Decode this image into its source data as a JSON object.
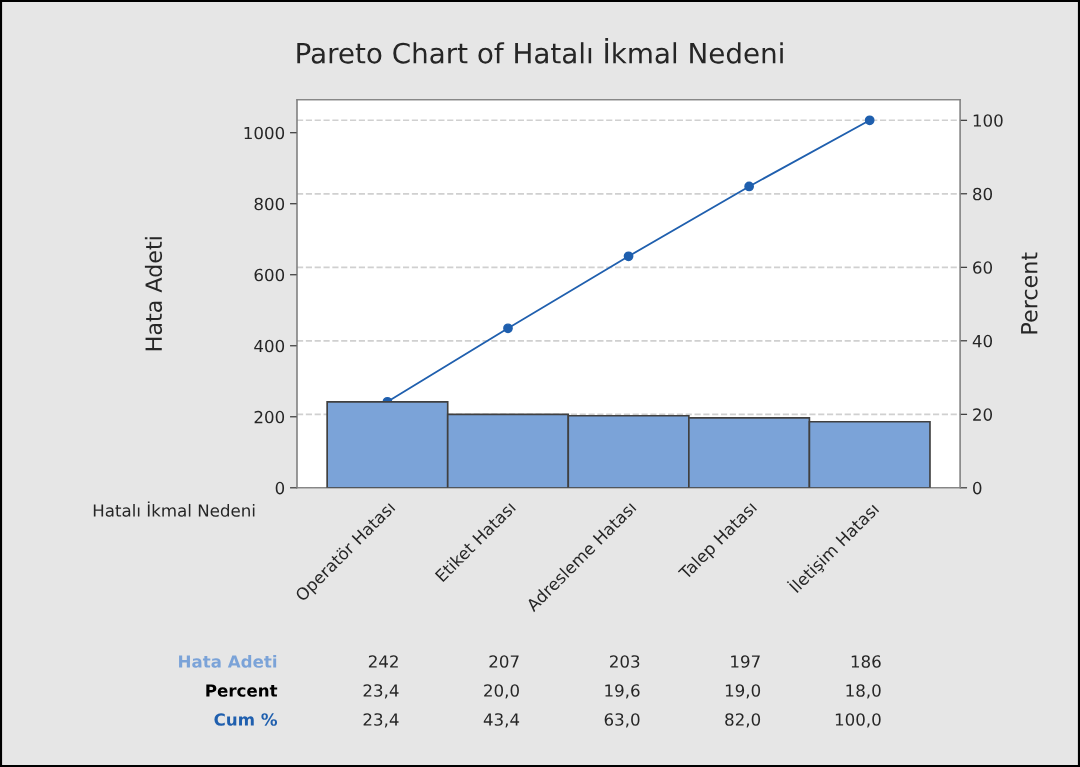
{
  "chart_data": {
    "type": "bar",
    "title": "Pareto Chart of Hatalı İkmal Nedeni",
    "xlabel": "Hatalı İkmal Nedeni",
    "ylabel": "Hata Adeti",
    "y2label": "Percent",
    "categories": [
      "Operatör Hatası",
      "Etiket Hatası",
      "Adresleme Hatası",
      "Talep Hatası",
      "İletişim Hatası"
    ],
    "series": [
      {
        "name": "Hata Adeti",
        "color": "#7ba3d8",
        "values": [
          242,
          207,
          203,
          197,
          186
        ]
      },
      {
        "name": "Cum %",
        "type": "line",
        "axis": "y2",
        "color": "#1f5fae",
        "marker": "circle",
        "line_style": "solid",
        "values": [
          23.4,
          43.4,
          63.0,
          82.0,
          100.0
        ],
        "value_labels": [
          "23,4",
          "43,4",
          "63,0",
          "82,0",
          "100,0"
        ]
      }
    ],
    "annotations": [
      "23,4",
      "20,0",
      "19,6",
      "19,0",
      "18,0"
    ],
    "data_labels": true,
    "ylim": [
      0,
      1093
    ],
    "yticks": [
      0,
      200,
      400,
      600,
      800,
      1000
    ],
    "y2lim": [
      0,
      105.6
    ],
    "y2ticks": [
      0,
      20,
      40,
      60,
      80,
      100
    ],
    "grid": "y",
    "legend": false
  }
}
